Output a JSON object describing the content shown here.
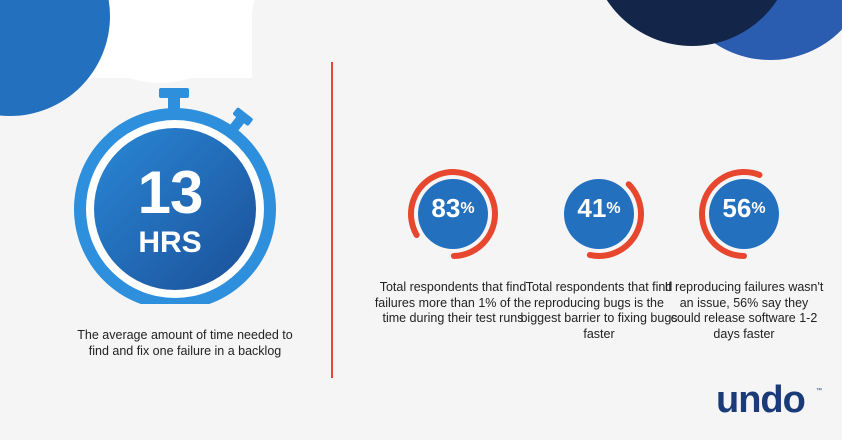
{
  "colors": {
    "accent": "#e8472f",
    "blue_dark": "#1b3a78",
    "blue_mid": "#2370bf",
    "blue_light": "#2e8fdc",
    "navy": "#13264a",
    "background": "#f5f5f6"
  },
  "timer": {
    "value": "13",
    "unit": "HRS",
    "caption": "The average amount of time needed to find and fix one failure in a backlog",
    "icon": "stopwatch-icon"
  },
  "stats": [
    {
      "value": "83",
      "suffix": "%",
      "level": 0.83,
      "caption": "Total respondents that find failures more than 1% of the time during their test runs"
    },
    {
      "value": "41",
      "suffix": "%",
      "level": 0.41,
      "caption": "Total respondents that find reproducing bugs is the biggest barrier to fixing bugs faster"
    },
    {
      "value": "56",
      "suffix": "%",
      "level": 0.56,
      "caption": "If reproducing failures wasn't an issue, 56% say they could release software 1-2 days faster"
    }
  ],
  "logo": {
    "text": "undo",
    "mark": "™"
  }
}
